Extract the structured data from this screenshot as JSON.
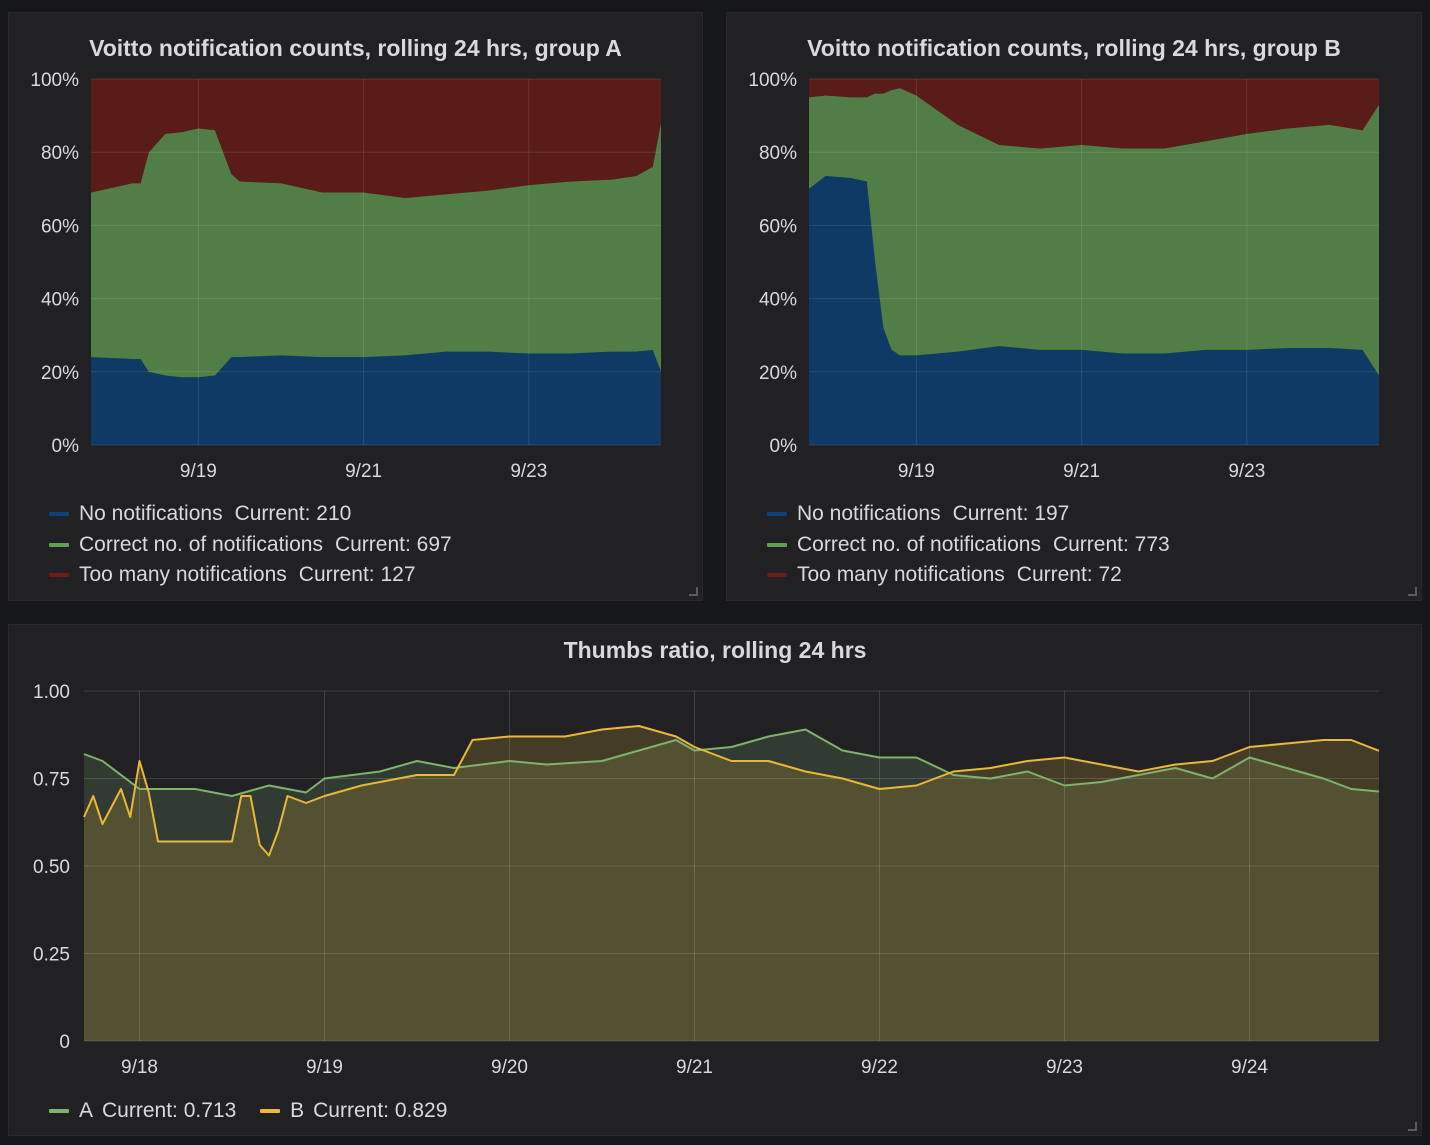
{
  "panels": {
    "a": {
      "title": "Voitto notification counts, rolling 24 hrs, group A",
      "legend": [
        {
          "label": "No notifications",
          "current": "Current: 210",
          "color": "#0a437c"
        },
        {
          "label": "Correct no. of notifications",
          "current": "Current: 697",
          "color": "#629e51"
        },
        {
          "label": "Too many notifications",
          "current": "Current: 127",
          "color": "#6d1b15"
        }
      ]
    },
    "b": {
      "title": "Voitto notification counts, rolling 24 hrs, group B",
      "legend": [
        {
          "label": "No notifications",
          "current": "Current: 197",
          "color": "#0a437c"
        },
        {
          "label": "Correct no. of notifications",
          "current": "Current: 773",
          "color": "#629e51"
        },
        {
          "label": "Too many notifications",
          "current": "Current: 72",
          "color": "#6d1b15"
        }
      ]
    },
    "c": {
      "title": "Thumbs ratio, rolling 24 hrs",
      "legend": [
        {
          "label": "A",
          "current": "Current: 0.713",
          "color": "#7eb26d"
        },
        {
          "label": "B",
          "current": "Current: 0.829",
          "color": "#eab839"
        }
      ]
    }
  },
  "chart_data": [
    {
      "type": "area",
      "stacked": true,
      "percent": true,
      "title": "Voitto notification counts, rolling 24 hrs, group A",
      "y_ticks": [
        "0%",
        "20%",
        "40%",
        "60%",
        "80%",
        "100%"
      ],
      "x_ticks": [
        "9/19",
        "9/21",
        "9/23"
      ],
      "x_tick_positions": [
        1.0,
        3.0,
        5.0
      ],
      "xlim": [
        -0.3,
        6.6
      ],
      "ylim": [
        0,
        100
      ],
      "x": [
        -0.3,
        0.2,
        0.3,
        0.4,
        0.6,
        0.8,
        1.0,
        1.2,
        1.4,
        1.5,
        2.0,
        2.5,
        3.0,
        3.5,
        4.0,
        4.5,
        5.0,
        5.5,
        6.0,
        6.3,
        6.5,
        6.6
      ],
      "series": [
        {
          "name": "No notifications",
          "color": "#0a437c",
          "values": [
            24,
            23.5,
            23.5,
            20,
            19,
            18.5,
            18.5,
            19,
            24,
            24,
            24.5,
            24,
            24,
            24.5,
            25.5,
            25.5,
            25,
            25,
            25.5,
            25.5,
            26,
            20
          ]
        },
        {
          "name": "Correct no. of notifications",
          "color": "#629e51",
          "values": [
            45,
            48,
            48,
            60,
            66,
            67,
            68,
            67,
            50,
            48,
            47,
            45,
            45,
            43,
            43,
            44,
            46,
            47,
            47,
            48,
            50,
            68
          ]
        },
        {
          "name": "Too many notifications",
          "color": "#6d1b15",
          "values": [
            31,
            28.5,
            28.5,
            20,
            15,
            14.5,
            13.5,
            14,
            26,
            28,
            28.5,
            31,
            31,
            32.5,
            31.5,
            30.5,
            29,
            28,
            27.5,
            26.5,
            24,
            12
          ]
        }
      ]
    },
    {
      "type": "area",
      "stacked": true,
      "percent": true,
      "title": "Voitto notification counts, rolling 24 hrs, group B",
      "y_ticks": [
        "0%",
        "20%",
        "40%",
        "60%",
        "80%",
        "100%"
      ],
      "x_ticks": [
        "9/19",
        "9/21",
        "9/23"
      ],
      "x_tick_positions": [
        1.0,
        3.0,
        5.0
      ],
      "xlim": [
        -0.3,
        6.6
      ],
      "ylim": [
        0,
        100
      ],
      "x": [
        -0.3,
        -0.1,
        0.2,
        0.4,
        0.5,
        0.6,
        0.7,
        0.8,
        1.0,
        1.5,
        2.0,
        2.5,
        3.0,
        3.5,
        4.0,
        4.5,
        5.0,
        5.5,
        6.0,
        6.4,
        6.6
      ],
      "series": [
        {
          "name": "No notifications",
          "color": "#0a437c",
          "values": [
            70,
            73.5,
            73,
            72,
            50,
            32,
            26,
            24.5,
            24.5,
            25.5,
            27,
            26,
            26,
            25,
            25,
            26,
            26,
            26.5,
            26.5,
            26,
            19
          ]
        },
        {
          "name": "Correct no. of notifications",
          "color": "#629e51",
          "values": [
            25,
            22,
            22,
            23,
            46,
            64,
            71,
            73,
            71,
            62,
            55,
            55,
            56,
            56,
            56,
            57,
            59,
            60,
            61,
            60,
            74
          ]
        },
        {
          "name": "Too many notifications",
          "color": "#6d1b15",
          "values": [
            5,
            4.5,
            5,
            5,
            4,
            4,
            3,
            2.5,
            4.5,
            12.5,
            18,
            19,
            18,
            19,
            19,
            17,
            15,
            13.5,
            12.5,
            14,
            7
          ]
        }
      ]
    },
    {
      "type": "line",
      "title": "Thumbs ratio, rolling 24 hrs",
      "y_ticks": [
        "0",
        "0.25",
        "0.50",
        "0.75",
        "1.00"
      ],
      "ylim": [
        0,
        1
      ],
      "x_ticks": [
        "9/18",
        "9/19",
        "9/20",
        "9/21",
        "9/22",
        "9/23",
        "9/24"
      ],
      "x_tick_positions": [
        0,
        1,
        2,
        3,
        4,
        5,
        6
      ],
      "xlim": [
        -0.3,
        6.7
      ],
      "series": [
        {
          "name": "A",
          "color": "#7eb26d",
          "x": [
            -0.3,
            -0.2,
            0.0,
            0.3,
            0.5,
            0.7,
            0.9,
            1.0,
            1.3,
            1.5,
            1.7,
            2.0,
            2.2,
            2.5,
            2.7,
            2.9,
            3.0,
            3.2,
            3.4,
            3.6,
            3.8,
            4.0,
            4.2,
            4.4,
            4.6,
            4.8,
            5.0,
            5.2,
            5.4,
            5.6,
            5.8,
            6.0,
            6.2,
            6.4,
            6.55,
            6.7
          ],
          "values": [
            0.82,
            0.8,
            0.72,
            0.72,
            0.7,
            0.73,
            0.71,
            0.75,
            0.77,
            0.8,
            0.78,
            0.8,
            0.79,
            0.8,
            0.83,
            0.86,
            0.83,
            0.84,
            0.87,
            0.89,
            0.83,
            0.81,
            0.81,
            0.76,
            0.75,
            0.77,
            0.73,
            0.74,
            0.76,
            0.78,
            0.75,
            0.81,
            0.78,
            0.75,
            0.72,
            0.713
          ]
        },
        {
          "name": "B",
          "color": "#eab839",
          "x": [
            -0.3,
            -0.25,
            -0.2,
            -0.1,
            -0.05,
            0.0,
            0.05,
            0.1,
            0.3,
            0.5,
            0.55,
            0.6,
            0.65,
            0.7,
            0.75,
            0.8,
            0.9,
            1.0,
            1.2,
            1.5,
            1.7,
            1.8,
            2.0,
            2.3,
            2.5,
            2.7,
            2.9,
            3.0,
            3.2,
            3.4,
            3.6,
            3.8,
            4.0,
            4.2,
            4.4,
            4.6,
            4.8,
            5.0,
            5.2,
            5.4,
            5.6,
            5.8,
            6.0,
            6.2,
            6.4,
            6.55,
            6.7
          ],
          "values": [
            0.64,
            0.7,
            0.62,
            0.72,
            0.64,
            0.8,
            0.71,
            0.57,
            0.57,
            0.57,
            0.7,
            0.7,
            0.56,
            0.53,
            0.6,
            0.7,
            0.68,
            0.7,
            0.73,
            0.76,
            0.76,
            0.86,
            0.87,
            0.87,
            0.89,
            0.9,
            0.87,
            0.84,
            0.8,
            0.8,
            0.77,
            0.75,
            0.72,
            0.73,
            0.77,
            0.78,
            0.8,
            0.81,
            0.79,
            0.77,
            0.79,
            0.8,
            0.84,
            0.85,
            0.86,
            0.86,
            0.829
          ]
        }
      ]
    }
  ]
}
